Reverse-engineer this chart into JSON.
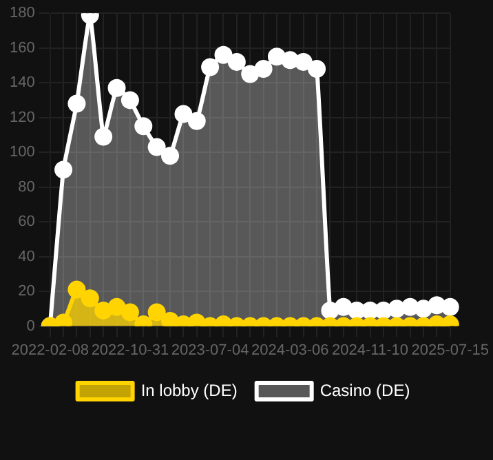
{
  "chart_data": {
    "type": "area",
    "categories": [
      "2022-02-08",
      null,
      null,
      null,
      null,
      null,
      "2022-10-31",
      null,
      null,
      null,
      null,
      null,
      "2023-07-04",
      null,
      null,
      null,
      null,
      null,
      "2024-03-06",
      null,
      null,
      null,
      null,
      null,
      "2024-11-10",
      null,
      null,
      null,
      null,
      null,
      "2025-07-15"
    ],
    "series": [
      {
        "name": "In lobby (DE)",
        "color": "#ffd400",
        "values": [
          0,
          2,
          21,
          16,
          9,
          11,
          8,
          1,
          8,
          3,
          1,
          2,
          0,
          1,
          0,
          0,
          0,
          0,
          0,
          0,
          0,
          0,
          0,
          0,
          0,
          0,
          0,
          0,
          0,
          1,
          1
        ]
      },
      {
        "name": "Casino (DE)",
        "color": "#ffffff",
        "values": [
          0,
          90,
          128,
          179,
          109,
          137,
          130,
          115,
          103,
          98,
          122,
          118,
          149,
          156,
          152,
          145,
          148,
          155,
          153,
          152,
          148,
          9,
          11,
          9,
          9,
          9,
          10,
          11,
          10,
          12,
          11
        ]
      }
    ],
    "ylim": [
      0,
      180
    ],
    "yticks": [
      0,
      20,
      40,
      60,
      80,
      100,
      120,
      140,
      160,
      180
    ],
    "grid": true,
    "legend": "bottom",
    "marker": "circle"
  }
}
